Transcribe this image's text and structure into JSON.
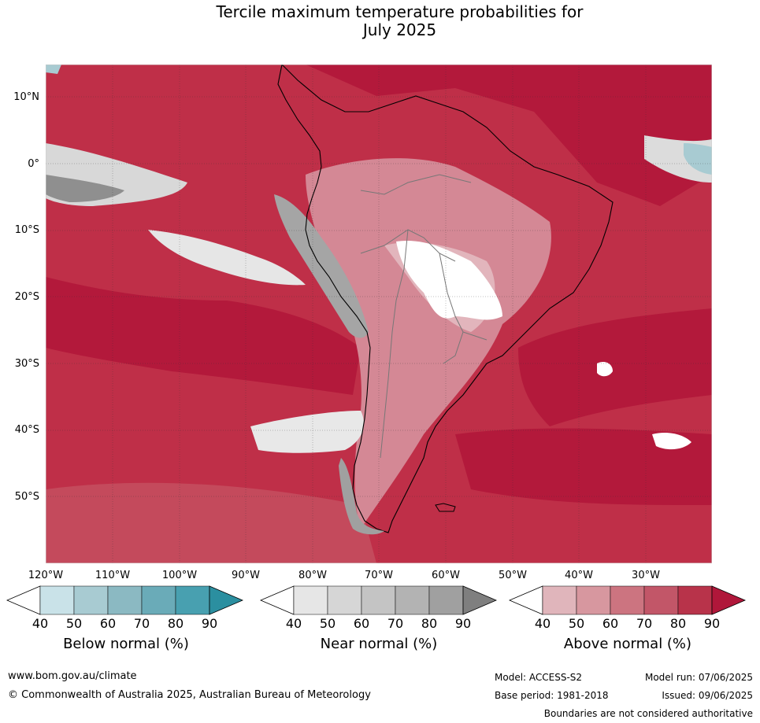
{
  "title_line1": "Tercile maximum temperature probabilities for",
  "title_line2": "July 2025",
  "map": {
    "lat_labels": [
      "10°N",
      "0°",
      "10°S",
      "20°S",
      "30°S",
      "40°S",
      "50°S"
    ],
    "lon_labels": [
      "120°W",
      "110°W",
      "100°W",
      "90°W",
      "80°W",
      "70°W",
      "60°W",
      "50°W",
      "40°W",
      "30°W"
    ]
  },
  "colorbars": [
    {
      "title": "Below normal (%)",
      "ticks": [
        "40",
        "50",
        "60",
        "70",
        "80",
        "90"
      ],
      "colors": [
        "#ffffff",
        "#c9e2e8",
        "#a8cbd2",
        "#8bb9c2",
        "#6aabb8",
        "#48a0b0",
        "#2b8fa0"
      ]
    },
    {
      "title": "Near normal (%)",
      "ticks": [
        "40",
        "50",
        "60",
        "70",
        "80",
        "90"
      ],
      "colors": [
        "#ffffff",
        "#e6e6e6",
        "#d6d6d6",
        "#c4c4c4",
        "#b3b3b3",
        "#a0a0a0",
        "#7f7f7f"
      ]
    },
    {
      "title": "Above normal (%)",
      "ticks": [
        "40",
        "50",
        "60",
        "70",
        "80",
        "90"
      ],
      "colors": [
        "#ffffff",
        "#e0b5bb",
        "#d7979f",
        "#cc7480",
        "#c25668",
        "#b8334a",
        "#b0173a"
      ]
    }
  ],
  "footer": {
    "url": "www.bom.gov.au/climate",
    "copyright": "© Commonwealth of Australia 2025, Australian Bureau of Meteorology",
    "model": "Model: ACCESS-S2",
    "model_run": "Model run: 07/06/2025",
    "base_period": "Base period: 1981-2018",
    "issued": "Issued: 09/06/2025",
    "disclaimer": "Boundaries are not considered authoritative"
  }
}
